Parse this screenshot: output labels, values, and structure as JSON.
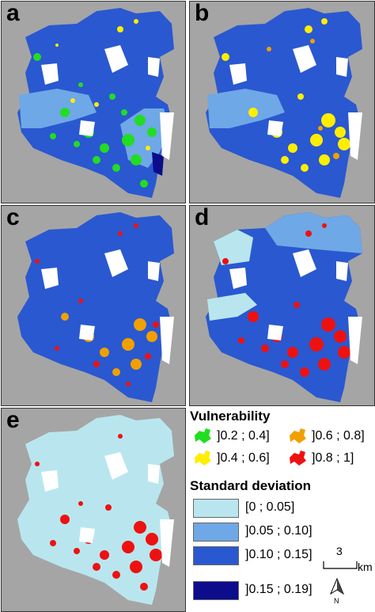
{
  "panels": [
    {
      "letter": "a"
    },
    {
      "letter": "b"
    },
    {
      "letter": "c"
    },
    {
      "letter": "d"
    },
    {
      "letter": "e"
    }
  ],
  "legend": {
    "vulnerability_title": "Vulnerability",
    "vulnerability_classes": [
      {
        "label": "]0.2 ; 0.4]",
        "color": "#22dd22"
      },
      {
        "label": "]0.4 ; 0.6]",
        "color": "#ffee00"
      },
      {
        "label": "]0.6 ; 0.8]",
        "color": "#f0a000"
      },
      {
        "label": "]0.8 ; 1]",
        "color": "#ee1111"
      }
    ],
    "std_title": "Standard deviation",
    "std_classes": [
      {
        "label": "[0 ; 0.05]",
        "color": "#b9e6ee"
      },
      {
        "label": "]0.05 ; 0.10]",
        "color": "#6ea8e6"
      },
      {
        "label": "]0.10 ; 0.15]",
        "color": "#2a58d0"
      },
      {
        "label": "]0.15 ; 0.19]",
        "color": "#0c0c8c"
      }
    ],
    "scale_value": "3",
    "scale_unit": "km",
    "north_label": "N"
  }
}
